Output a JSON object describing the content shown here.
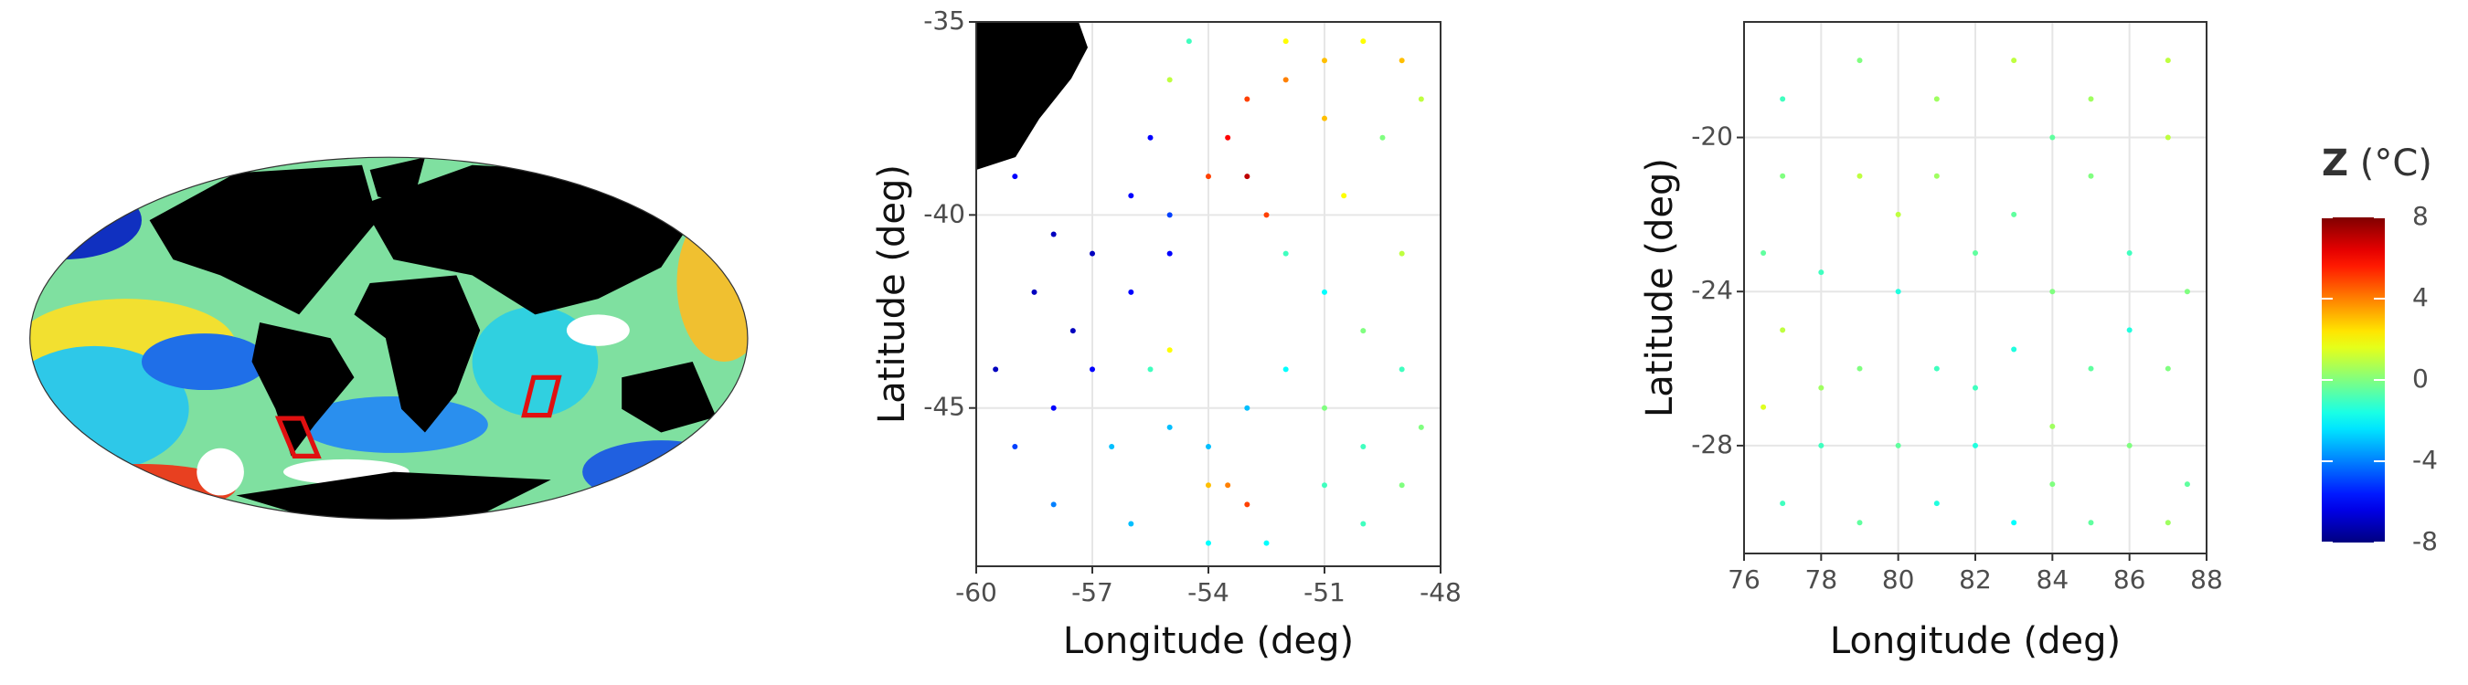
{
  "chart_data": [
    {
      "type": "scatter",
      "xlabel": "Longitude (deg)",
      "ylabel": "Latitude (deg)",
      "xlim": [
        -60,
        -48
      ],
      "xticks": [
        -60,
        -57,
        -54,
        -51,
        -48
      ],
      "ylim": [
        -49.1,
        -35
      ],
      "yticks": [
        -45,
        -40,
        -35
      ],
      "grid": true,
      "colormap": "jet",
      "x": [
        -59,
        -58,
        -57,
        -56,
        -55.5,
        -58.5,
        -57.5,
        -56,
        -55,
        -59.5,
        -58,
        -57,
        -59,
        -56.5,
        -55,
        -54,
        -58,
        -56,
        -54,
        -52.5,
        -55,
        -55.5,
        -53,
        -52,
        -51,
        -50,
        -53.5,
        -53,
        -52.5,
        -54,
        -51,
        -49,
        -48.5,
        -49.5,
        -52,
        -51,
        -50,
        -49,
        -48.5,
        -50,
        -51,
        -52,
        -53,
        -53.5,
        -53,
        -54,
        -51,
        -49,
        -50,
        -52,
        -54.5,
        -55,
        -49,
        -50.5,
        -55
      ],
      "y": [
        -39,
        -40.5,
        -41,
        -39.5,
        -38,
        -42,
        -43,
        -42,
        -41,
        -44,
        -45,
        -44,
        -46,
        -46,
        -45.5,
        -46,
        -47.5,
        -48,
        -48.5,
        -48.5,
        -43.5,
        -44,
        -37,
        -36.5,
        -36,
        -35.5,
        -38,
        -39,
        -40,
        -39,
        -37.5,
        -36,
        -37,
        -38,
        -41,
        -42,
        -43,
        -44,
        -45.5,
        -46,
        -45,
        -44,
        -45,
        -47,
        -47.5,
        -47,
        -47,
        -47,
        -48,
        -35.5,
        -35.5,
        -36.5,
        -41,
        -39.5,
        -40
      ],
      "z": [
        -6,
        -7,
        -7,
        -6,
        -6,
        -7,
        -7,
        -6,
        -6,
        -7,
        -6,
        -6,
        -5,
        -3,
        -3,
        -3,
        -4,
        -3,
        -2,
        -2,
        2,
        -1,
        5,
        4,
        3,
        2,
        6,
        7,
        5,
        5,
        3,
        3,
        1,
        0,
        -1,
        -2,
        0,
        -1,
        0,
        -1,
        0,
        -2,
        -3,
        4,
        5,
        3,
        -1,
        0,
        -1,
        2,
        -1,
        1,
        1,
        2,
        -5
      ]
    },
    {
      "type": "scatter",
      "xlabel": "Longitude (deg)",
      "ylabel": "Latitude (deg)",
      "xlim": [
        76,
        88
      ],
      "xticks": [
        76,
        78,
        80,
        82,
        84,
        86,
        88
      ],
      "ylim": [
        -30.8,
        -17
      ],
      "yticks": [
        -28,
        -24,
        -20
      ],
      "grid": true,
      "colormap": "jet",
      "x": [
        77,
        79,
        81,
        83,
        85,
        87,
        77,
        79,
        81,
        83,
        85,
        87,
        76.5,
        78,
        80,
        82,
        84,
        86,
        87.5,
        77,
        79,
        81,
        83,
        85,
        87,
        76.5,
        78,
        80,
        82,
        84,
        86,
        87.5,
        77,
        79,
        81,
        83,
        85,
        87,
        80,
        84,
        78,
        86,
        82,
        84
      ],
      "y": [
        -19,
        -18,
        -19,
        -18,
        -19,
        -18,
        -21,
        -21,
        -21,
        -22,
        -21,
        -20,
        -23,
        -23.5,
        -24,
        -23,
        -24,
        -23,
        -24,
        -25,
        -26,
        -26,
        -25.5,
        -26,
        -26,
        -27,
        -28,
        -28,
        -28,
        -27.5,
        -28,
        -29,
        -29.5,
        -30,
        -29.5,
        -30,
        -30,
        -30,
        -22,
        -20,
        -26.5,
        -25,
        -26.5,
        -29
      ],
      "z": [
        -1,
        0,
        0.5,
        1,
        0.5,
        1,
        0,
        1,
        0.5,
        -0.5,
        0,
        1,
        -0.5,
        -1,
        -1.5,
        -0.5,
        0,
        -1,
        0,
        1,
        0,
        -1,
        -1.5,
        -0.5,
        0,
        1.5,
        -1,
        -0.5,
        -1.5,
        0.5,
        0,
        -0.5,
        -1,
        -0.5,
        -1.5,
        -2,
        -0.5,
        0.5,
        1,
        -0.5,
        0.5,
        -1.5,
        -1,
        0
      ]
    },
    {
      "type": "colorbar",
      "title": "Z",
      "unit": "(°C)",
      "lim": [
        -8,
        8
      ],
      "ticks": [
        -8,
        -4,
        0,
        4,
        8
      ],
      "colormap": "jet"
    }
  ]
}
